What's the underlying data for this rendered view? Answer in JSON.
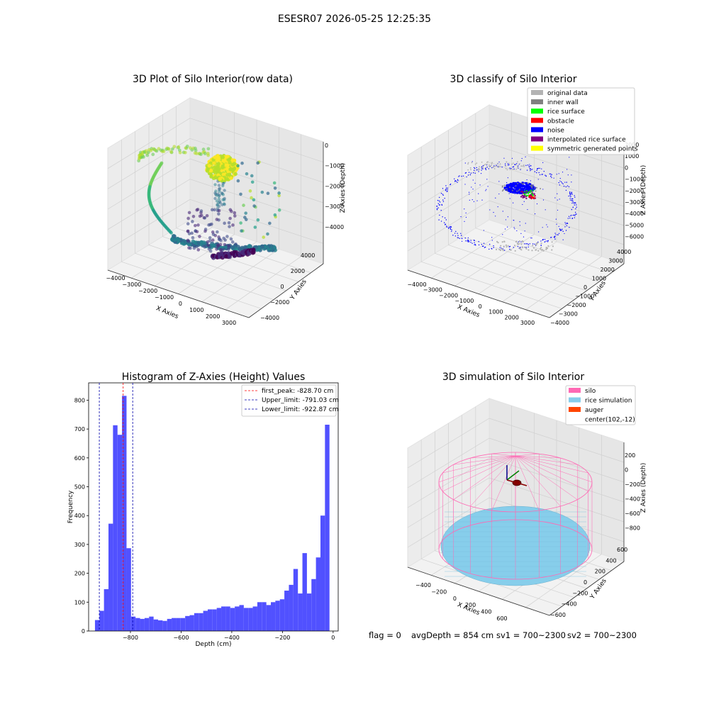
{
  "suptitle": "ESESR07 2026-05-25 12:25:35",
  "footer": {
    "flag": "flag = 0",
    "avg": "avgDepth = 854 cm",
    "sv1": "sv1 = 700~2300",
    "sv2": "sv2 = 700~2300"
  },
  "chart_data": [
    {
      "type": "scatter",
      "projection": "3d",
      "title": "3D Plot of Silo Interior(row data)",
      "xlabel": "X Axies",
      "ylabel": "Y Axies",
      "zlabel": "Z Axies (Depth)",
      "x_ticks": [
        "−4000",
        "−3000",
        "−2000",
        "−1000",
        "0",
        "1000",
        "2000",
        "3000"
      ],
      "y_ticks": [
        "−4000",
        "−2000",
        "0",
        "2000",
        "4000"
      ],
      "z_ticks": [
        "0",
        "−1000",
        "−2000",
        "−3000",
        "−4000"
      ],
      "colormap": "viridis"
    },
    {
      "type": "scatter",
      "projection": "3d",
      "title": "3D classify of Silo Interior",
      "xlabel": "X Axies",
      "ylabel": "Y Axies",
      "zlabel": "Z Axies (Depth)",
      "x_ticks": [
        "−4000",
        "−3000",
        "−2000",
        "−1000",
        "0",
        "1000",
        "2000",
        "3000"
      ],
      "y_ticks": [
        "−4000",
        "−3000",
        "−2000",
        "−1000",
        "0",
        "1000",
        "2000",
        "3000",
        "4000"
      ],
      "z_ticks": [
        "2000",
        "1000",
        "0",
        "−1000",
        "−2000",
        "−3000",
        "−4000",
        "−5000",
        "−6000"
      ],
      "legend": [
        {
          "label": "original data",
          "color": "#b3b3b3"
        },
        {
          "label": "inner wall",
          "color": "#808080"
        },
        {
          "label": "rice surface",
          "color": "#00ff00"
        },
        {
          "label": "obstacle",
          "color": "#ff0000"
        },
        {
          "label": "noise",
          "color": "#0000ff"
        },
        {
          "label": "interpolated rice surface",
          "color": "#800080"
        },
        {
          "label": "symmetric generated points",
          "color": "#ffff00"
        }
      ],
      "legend_loc": "upper right"
    },
    {
      "type": "bar",
      "title": "Histogram of Z-Axies (Height) Values",
      "xlabel": "Depth (cm)",
      "ylabel": "Frequency",
      "xlim": [
        -965,
        20
      ],
      "ylim": [
        0,
        860
      ],
      "x_ticks": [
        -800,
        -600,
        -400,
        -200,
        0
      ],
      "y_ticks": [
        0,
        100,
        200,
        300,
        400,
        500,
        600,
        700,
        800
      ],
      "bin_start": -940,
      "bin_width": 17.8,
      "values": [
        38,
        70,
        145,
        372,
        713,
        680,
        815,
        287,
        50,
        45,
        42,
        45,
        50,
        40,
        37,
        35,
        42,
        45,
        45,
        45,
        52,
        55,
        62,
        62,
        70,
        75,
        75,
        80,
        85,
        85,
        80,
        85,
        90,
        80,
        80,
        85,
        100,
        100,
        90,
        100,
        105,
        110,
        140,
        160,
        215,
        130,
        270,
        130,
        180,
        255,
        400,
        715
      ],
      "bar_color": "#5151ff",
      "vlines": [
        {
          "label": "first_peak: -828.70 cm",
          "x": -828.7,
          "color": "#ff0000"
        },
        {
          "label": "Upper_limit: -791.03 cm",
          "x": -791.03,
          "color": "#0000aa"
        },
        {
          "label": "Lower_limit: -922.87 cm",
          "x": -922.87,
          "color": "#0000aa"
        }
      ],
      "legend_loc": "upper right"
    },
    {
      "type": "surface",
      "projection": "3d",
      "title": "3D simulation of Silo Interior",
      "xlabel": "X Axies",
      "ylabel": "Y Axies",
      "zlabel": "Z Axies (Depth)",
      "x_ticks": [
        "−400",
        "−200",
        "0",
        "200",
        "400",
        "600"
      ],
      "y_ticks": [
        "−600",
        "−400",
        "−200",
        "0",
        "200",
        "400",
        "600"
      ],
      "z_ticks": [
        "200",
        "0",
        "−200",
        "−400",
        "−600",
        "−800"
      ],
      "legend": [
        {
          "label": "silo",
          "color": "#ff69b4"
        },
        {
          "label": "rice simulation",
          "color": "#87ceeb"
        },
        {
          "label": "auger",
          "color": "#ff4500"
        },
        {
          "label": "center(102,-12)",
          "color": "none"
        }
      ],
      "legend_loc": "upper right"
    }
  ]
}
